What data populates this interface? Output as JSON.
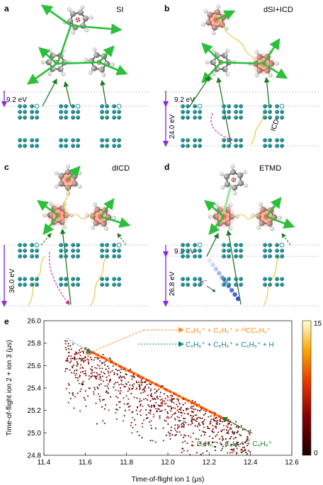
{
  "panels": [
    {
      "label": "a",
      "title": "SI",
      "energies": [
        "9.2 eV"
      ],
      "process": ""
    },
    {
      "label": "b",
      "title": "dSI+ICD",
      "energies": [
        "9.2 eV",
        "24.0 eV"
      ],
      "process": "ICD"
    },
    {
      "label": "c",
      "title": "dICD",
      "energies": [
        "36.0 eV"
      ],
      "process": ""
    },
    {
      "label": "d",
      "title": "ETMD",
      "energies": [
        "9.2 eV",
        "26.8 eV"
      ],
      "process": "e⁻"
    }
  ],
  "colors": {
    "green": "#2bbf3a",
    "dark_green": "#1e7a22",
    "teal": "#137f82",
    "purple": "#8a2be2",
    "magenta": "#e0199b",
    "yellow": "#e7c631",
    "orange": "#ff8c1a",
    "carbon": "#8c8c8c"
  },
  "panel_e": {
    "label": "e",
    "annotations": [
      {
        "text": "C₆H₆⁺ + C₆H₆⁺ + ¹³CC₅H₆⁺",
        "color": "#ff8c1a"
      },
      {
        "text": "C₆H₆⁺ + C₆H₆⁺ + C₆H₅⁺ + H",
        "color": "#137f82"
      },
      {
        "text": "C₆H₆⁺ + C₆H₆⁺ + C₆H₆⁺",
        "color": "#1e7a22"
      }
    ],
    "colorbar": {
      "max": "15",
      "min": "0"
    }
  },
  "chart_data": {
    "type": "heatmap",
    "title": "",
    "xlabel": "Time-of-flight ion 1 (μs)",
    "ylabel": "Time-of-flight ion 2 + ion 3 (μs)",
    "xlim": [
      11.4,
      12.6
    ],
    "ylim": [
      24.8,
      26.0
    ],
    "xticks": [
      "11.4",
      "11.6",
      "11.8",
      "12.0",
      "12.2",
      "12.4",
      "12.6"
    ],
    "yticks": [
      "24.8",
      "25.0",
      "25.2",
      "25.4",
      "25.6",
      "25.8",
      "26.0"
    ],
    "colorbar_range": [
      0,
      15
    ],
    "ridge_line": {
      "x": [
        11.6,
        12.3
      ],
      "y": [
        25.75,
        25.1
      ]
    }
  }
}
